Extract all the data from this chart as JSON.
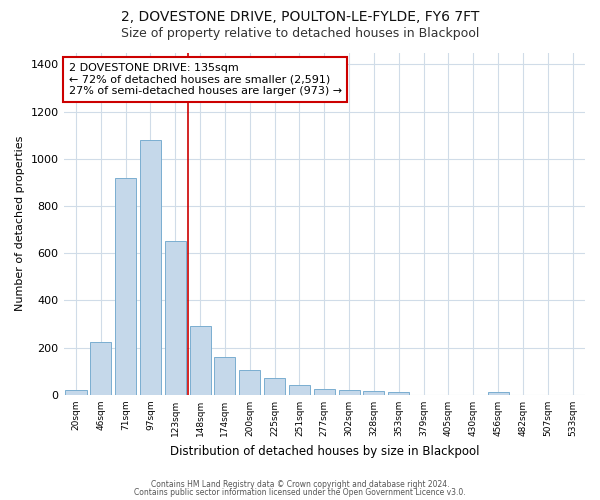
{
  "title1": "2, DOVESTONE DRIVE, POULTON-LE-FYLDE, FY6 7FT",
  "title2": "Size of property relative to detached houses in Blackpool",
  "xlabel": "Distribution of detached houses by size in Blackpool",
  "ylabel": "Number of detached properties",
  "categories": [
    "20sqm",
    "46sqm",
    "71sqm",
    "97sqm",
    "123sqm",
    "148sqm",
    "174sqm",
    "200sqm",
    "225sqm",
    "251sqm",
    "277sqm",
    "302sqm",
    "328sqm",
    "353sqm",
    "379sqm",
    "405sqm",
    "430sqm",
    "456sqm",
    "482sqm",
    "507sqm",
    "533sqm"
  ],
  "values": [
    20,
    225,
    920,
    1080,
    650,
    290,
    160,
    105,
    70,
    40,
    25,
    22,
    18,
    14,
    0,
    0,
    0,
    13,
    0,
    0,
    0
  ],
  "bar_color": "#c5d8ea",
  "bar_edge_color": "#7aaed0",
  "annotation_line1": "2 DOVESTONE DRIVE: 135sqm",
  "annotation_line2": "← 72% of detached houses are smaller (2,591)",
  "annotation_line3": "27% of semi-detached houses are larger (973) →",
  "annotation_box_facecolor": "#ffffff",
  "annotation_edge_color": "#cc0000",
  "vline_color": "#cc0000",
  "ylim": [
    0,
    1450
  ],
  "yticks": [
    0,
    200,
    400,
    600,
    800,
    1000,
    1200,
    1400
  ],
  "footer1": "Contains HM Land Registry data © Crown copyright and database right 2024.",
  "footer2": "Contains public sector information licensed under the Open Government Licence v3.0.",
  "bg_color": "#ffffff",
  "plot_bg_color": "#ffffff",
  "grid_color": "#d0dce8",
  "title1_fontsize": 10,
  "title2_fontsize": 9
}
